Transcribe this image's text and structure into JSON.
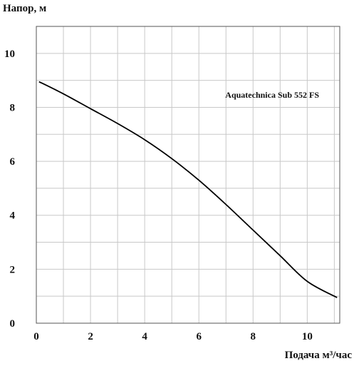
{
  "chart_data": {
    "type": "line",
    "ylabel": "Напор, м",
    "xlabel": "Подача  м³/час",
    "xlim": [
      0,
      11.2
    ],
    "ylim": [
      0,
      11
    ],
    "x_ticks": [
      0,
      2,
      4,
      6,
      8,
      10
    ],
    "y_ticks": [
      0,
      2,
      4,
      6,
      8,
      10
    ],
    "x_tick_labels": [
      "0",
      "2",
      "4",
      "6",
      "8",
      "10"
    ],
    "y_tick_labels": [
      "0",
      "2",
      "4",
      "6",
      "8",
      "10"
    ],
    "grid": true,
    "series": [
      {
        "name": "Aquatechnica Sub 552 FS",
        "color": "#000000",
        "x": [
          0.1,
          1,
          2,
          3,
          4,
          5,
          6,
          7,
          8,
          9,
          10,
          11.1
        ],
        "y": [
          8.95,
          8.5,
          7.95,
          7.4,
          6.8,
          6.1,
          5.3,
          4.4,
          3.45,
          2.5,
          1.55,
          0.95
        ]
      }
    ]
  }
}
